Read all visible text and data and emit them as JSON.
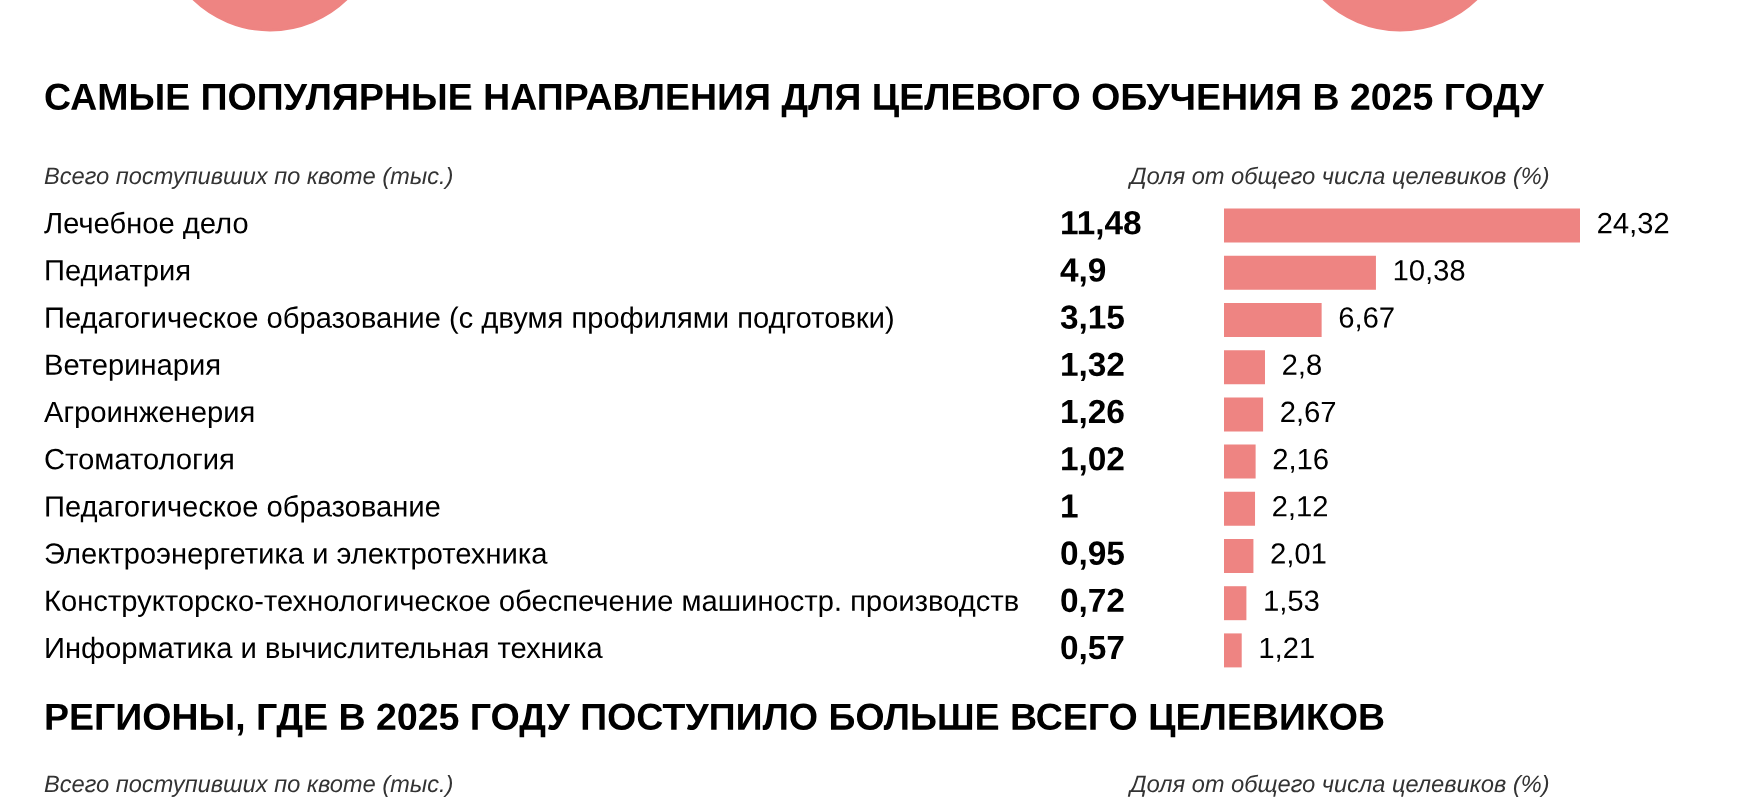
{
  "chart_data": [
    {
      "type": "bar",
      "orientation": "horizontal",
      "title": "САМЫЕ ПОПУЛЯРНЫЕ НАПРАВЛЕНИЯ ДЛЯ ЦЕЛЕВОГО ОБУЧЕНИЯ В 2025 ГОДУ",
      "categories": [
        "Лечебное дело",
        "Педиатрия",
        "Педагогическое образование (с двумя профилями подготовки)",
        "Ветеринария",
        "Агроинженерия",
        "Стоматология",
        "Педагогическое образование",
        "Электроэнергетика и электротехника",
        "Конструкторско-технологическое обеспечение машиностр. производств",
        "Информатика и вычислительная техника"
      ],
      "values": [
        24.32,
        10.38,
        6.67,
        2.8,
        2.67,
        2.16,
        2.12,
        2.01,
        1.53,
        1.21
      ],
      "value_labels": [
        "24,32",
        "10,38",
        "6,67",
        "2,8",
        "2,67",
        "2,16",
        "2,12",
        "2,01",
        "1,53",
        "1,21"
      ],
      "color": "#ee8482",
      "annotations": [
        "Всего поступивших по квоте (тыс.)",
        "Доля от общего числа целевиков (%)",
        "11,48",
        "4,9",
        "3,15",
        "1,32",
        "1,26",
        "1,02",
        "1",
        "0,95",
        "0,72",
        "0,57"
      ]
    },
    {
      "type": "other",
      "title": "РЕГИОНЫ, ГДЕ В 2025 ГОДУ ПОСТУПИЛО БОЛЬШЕ ВСЕГО ЦЕЛЕВИКОВ",
      "annotations": [
        "Всего поступивших по квоте (тыс.)",
        "Доля от общего числа целевиков (%)"
      ]
    }
  ]
}
